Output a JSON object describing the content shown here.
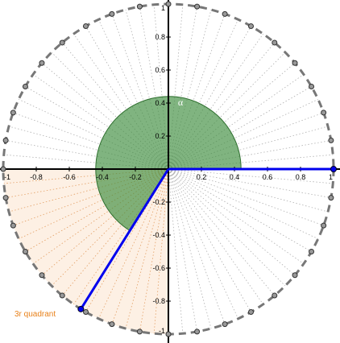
{
  "figure": {
    "axis_range": [
      -1,
      1
    ],
    "axis_step": 0.2,
    "tick_labels": {
      "x": [
        "-1",
        "-0.8",
        "-0.6",
        "-0.4",
        "-0.2",
        "0.2",
        "0.4",
        "0.6",
        "0.8",
        "1"
      ],
      "y": [
        "1",
        "0.8",
        "0.6",
        "0.4",
        "0.2",
        "-0.2",
        "-0.4",
        "-0.6",
        "-0.8",
        "-1"
      ]
    },
    "circle_points_step_deg": 10,
    "radial_lines_step_deg": 5,
    "quadrant": {
      "label": "3r quadrant",
      "from_deg": 180,
      "to_deg": 270,
      "color": "#e8811a",
      "fill": "#fdf0e4"
    },
    "angle": {
      "label": "α",
      "degrees": 238,
      "sector_radius": 0.44,
      "fill": "#3c8c3c",
      "stroke": "#2f6f2f"
    },
    "radius_color": "#0000ee",
    "circle_color": "#777777",
    "point_fill": "#999999"
  }
}
